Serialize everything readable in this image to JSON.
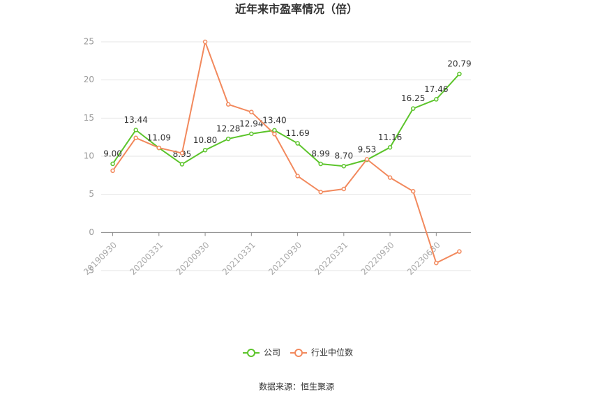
{
  "chart_data": {
    "type": "line",
    "title": "近年来市盈率情况（倍）",
    "categories": [
      "20190930",
      null,
      "20200331",
      null,
      "20200930",
      null,
      "20210331",
      null,
      "20210930",
      null,
      "20220331",
      null,
      "20220930",
      null,
      "20230630",
      null
    ],
    "series": [
      {
        "name": "公司",
        "color": "#5cc42b",
        "values": [
          9.0,
          13.44,
          11.09,
          8.95,
          10.8,
          12.28,
          12.94,
          13.4,
          11.69,
          8.99,
          8.7,
          9.53,
          11.16,
          16.25,
          17.46,
          20.79
        ],
        "value_labels": [
          "9.00",
          "13.44",
          "11.09",
          "8.95",
          "10.80",
          "12.28",
          "12.94",
          "13.40",
          "11.69",
          "8.99",
          "8.70",
          "9.53",
          "11.16",
          "16.25",
          "17.46",
          "20.79"
        ]
      },
      {
        "name": "行业中位数",
        "color": "#f2895d",
        "values": [
          8.1,
          12.4,
          11.1,
          10.4,
          25.0,
          16.8,
          15.8,
          12.9,
          7.4,
          5.3,
          5.7,
          9.6,
          7.2,
          5.4,
          -4.0,
          -2.5
        ]
      }
    ],
    "ylim": [
      -5,
      25
    ],
    "yticks": [
      -5,
      0,
      5,
      10,
      15,
      20,
      25
    ],
    "grid": true,
    "legend": "bottom",
    "source": "数据来源：恒生聚源"
  }
}
